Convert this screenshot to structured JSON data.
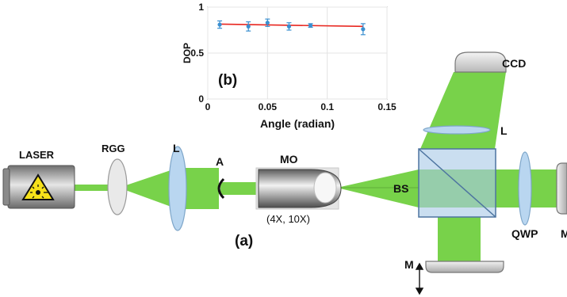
{
  "labels": {
    "laser": "LASER",
    "rgg": "RGG",
    "lens_left": "L",
    "aperture": "A",
    "objective": "MO",
    "magnification": "(4X, 10X)",
    "panel_a": "(a)",
    "beam_splitter": "BS",
    "ccd": "CCD",
    "lens_top": "L",
    "qwp": "QWP",
    "mirror_right": "M",
    "mirror_bottom": "M"
  },
  "colors": {
    "beam": "#78d24a",
    "lens": "#b9d6f0",
    "cube": "#a9c9e6",
    "fit_line": "#e8261f",
    "markers": "#3a8fd0"
  },
  "chart_data": {
    "type": "scatter",
    "panel_label": "(b)",
    "xlabel": "Angle (radian)",
    "ylabel": "DOP",
    "xlim": [
      0,
      0.15
    ],
    "ylim": [
      0,
      1
    ],
    "xticks": [
      "0",
      "0.05",
      "0.1",
      "0.15"
    ],
    "yticks": [
      "0",
      "0.5",
      "1"
    ],
    "grid": true,
    "series": [
      {
        "x": [
          0.01,
          0.034,
          0.05,
          0.068,
          0.086,
          0.13
        ],
        "y": [
          0.81,
          0.79,
          0.83,
          0.79,
          0.8,
          0.76
        ],
        "err": [
          0.04,
          0.05,
          0.04,
          0.04,
          0.02,
          0.06
        ]
      }
    ],
    "fit": {
      "x": [
        0.01,
        0.13
      ],
      "y": [
        0.815,
        0.79
      ]
    }
  }
}
